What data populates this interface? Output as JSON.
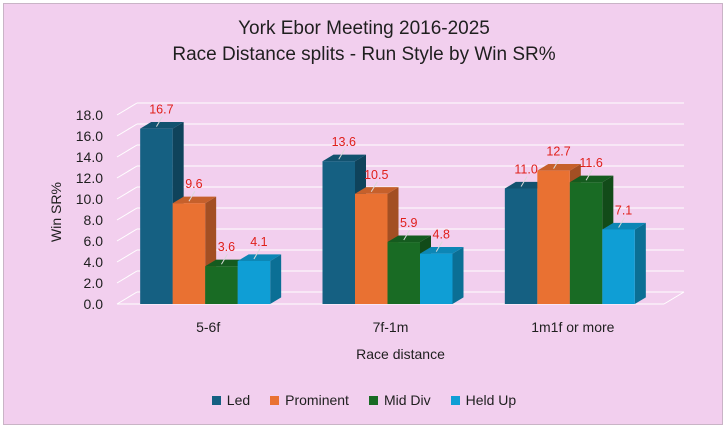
{
  "chart_data": {
    "type": "bar",
    "title_lines": [
      "York Ebor Meeting 2016-2025",
      "Race Distance splits - Run Style by Win SR%"
    ],
    "xlabel": "Race distance",
    "ylabel": "Win SR%",
    "ylim": [
      0,
      18
    ],
    "y_ticks": [
      "0.0",
      "2.0",
      "4.0",
      "6.0",
      "8.0",
      "10.0",
      "12.0",
      "14.0",
      "16.0",
      "18.0"
    ],
    "categories": [
      "5-6f",
      "7f-1m",
      "1m1f or more"
    ],
    "series": [
      {
        "name": "Led",
        "values": [
          16.7,
          13.6,
          11.0
        ],
        "labels": [
          "16.7",
          "13.6",
          "11.0"
        ],
        "color": "#156082"
      },
      {
        "name": "Prominent",
        "values": [
          9.6,
          10.5,
          12.7
        ],
        "labels": [
          "9.6",
          "10.5",
          "12.7"
        ],
        "color": "#e97132"
      },
      {
        "name": "Mid Div",
        "values": [
          3.6,
          5.9,
          11.6
        ],
        "labels": [
          "3.6",
          "5.9",
          "11.6"
        ],
        "color": "#196b24"
      },
      {
        "name": "Held Up",
        "values": [
          4.1,
          4.8,
          7.1
        ],
        "labels": [
          "4.1",
          "4.8",
          "7.1"
        ],
        "color": "#0f9ed5"
      }
    ],
    "grid": true,
    "legend_position": "bottom",
    "style": "3d-clustered-column"
  }
}
